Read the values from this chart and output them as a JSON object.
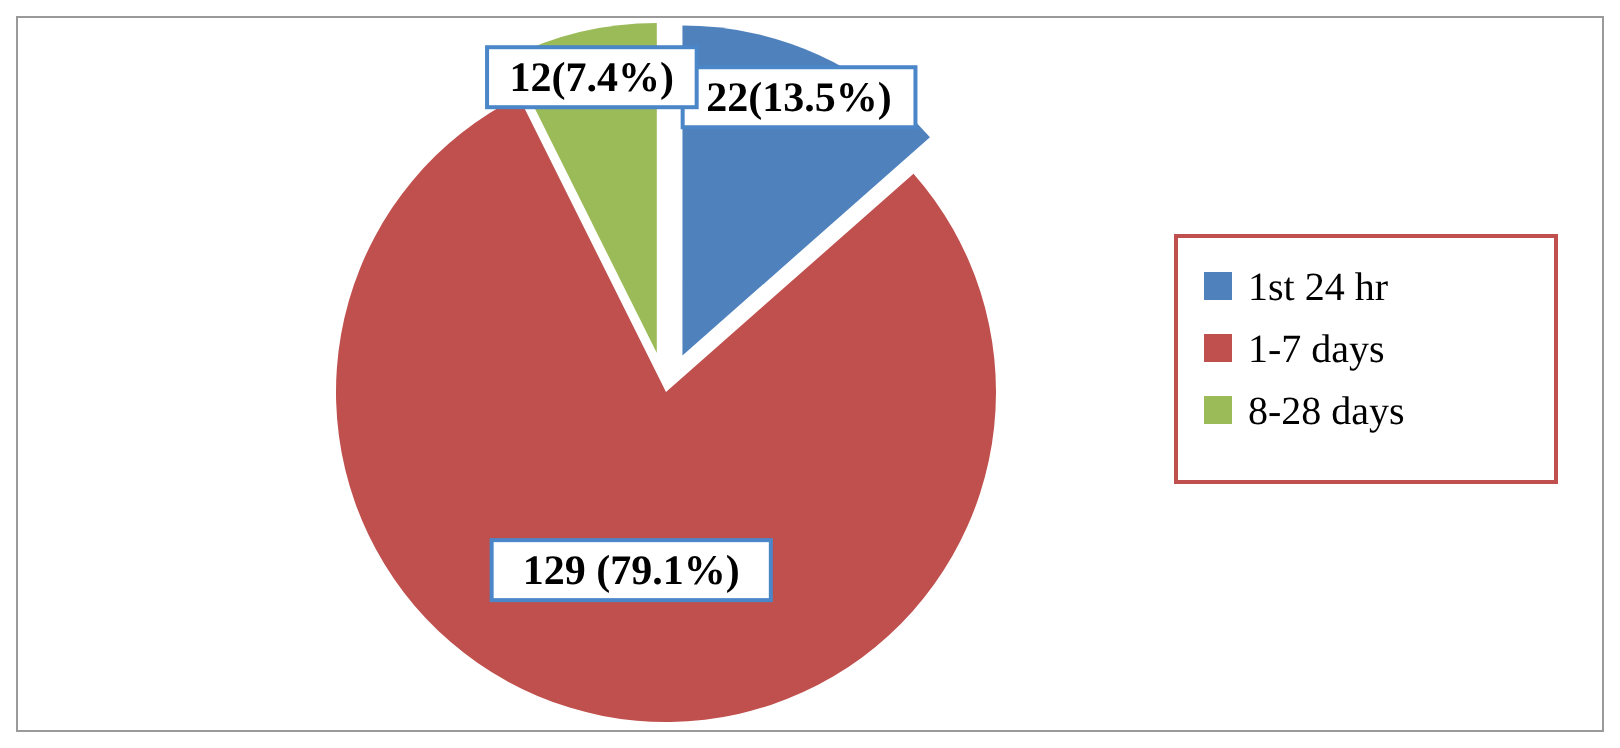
{
  "chart_data": {
    "type": "pie",
    "categories": [
      "1st 24 hr",
      "1-7 days",
      "8-28 days"
    ],
    "values": [
      22,
      129,
      12
    ],
    "colors": [
      "#4f81bd",
      "#c0504d",
      "#9bbb59"
    ],
    "value_labels": [
      "22(13.5%)",
      "129 (79.1%)",
      "12(7.4%)"
    ],
    "legend": "right"
  }
}
